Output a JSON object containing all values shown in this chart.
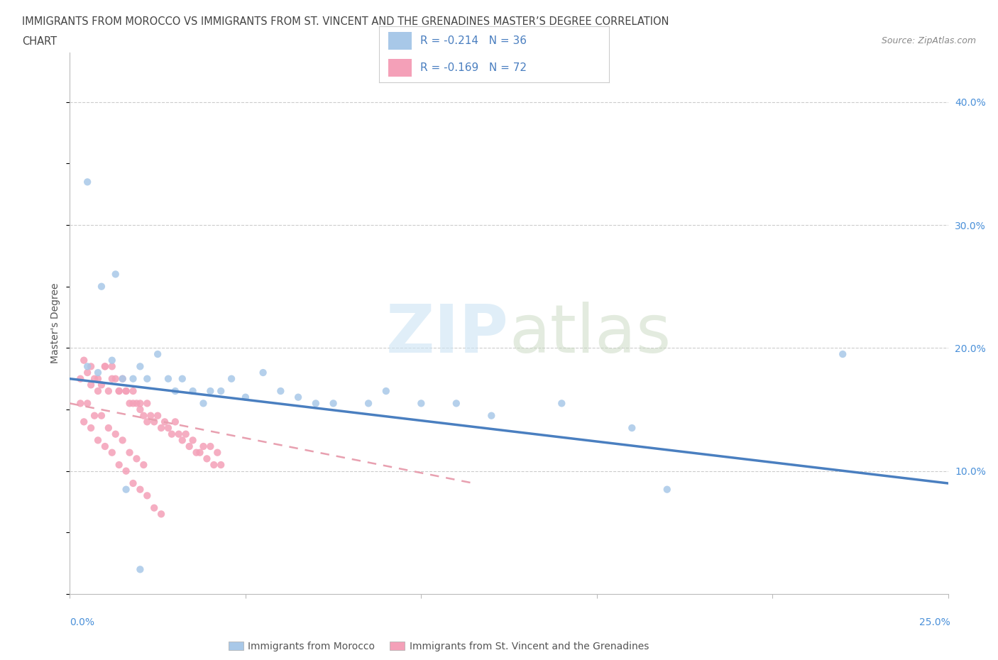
{
  "title_line1": "IMMIGRANTS FROM MOROCCO VS IMMIGRANTS FROM ST. VINCENT AND THE GRENADINES MASTER’S DEGREE CORRELATION",
  "title_line2": "CHART",
  "source_text": "Source: ZipAtlas.com",
  "ylabel": "Master's Degree",
  "ylabel_right_ticks": [
    "40.0%",
    "30.0%",
    "20.0%",
    "10.0%"
  ],
  "ylabel_right_vals": [
    0.4,
    0.3,
    0.2,
    0.1
  ],
  "xmin": 0.0,
  "xmax": 0.25,
  "ymin": 0.0,
  "ymax": 0.44,
  "color_morocco": "#a8c8e8",
  "color_stv": "#f4a0b8",
  "color_line_morocco": "#4a7fc0",
  "color_line_stv": "#e8a0b0",
  "morocco_scatter_x": [
    0.005,
    0.008,
    0.012,
    0.015,
    0.018,
    0.02,
    0.022,
    0.025,
    0.028,
    0.03,
    0.032,
    0.035,
    0.038,
    0.04,
    0.043,
    0.046,
    0.05,
    0.055,
    0.06,
    0.065,
    0.07,
    0.075,
    0.085,
    0.09,
    0.1,
    0.11,
    0.12,
    0.14,
    0.16,
    0.17,
    0.22,
    0.005,
    0.009,
    0.013,
    0.016,
    0.02
  ],
  "morocco_scatter_y": [
    0.185,
    0.18,
    0.19,
    0.175,
    0.175,
    0.185,
    0.175,
    0.195,
    0.175,
    0.165,
    0.175,
    0.165,
    0.155,
    0.165,
    0.165,
    0.175,
    0.16,
    0.18,
    0.165,
    0.16,
    0.155,
    0.155,
    0.155,
    0.165,
    0.155,
    0.155,
    0.145,
    0.155,
    0.135,
    0.085,
    0.195,
    0.335,
    0.25,
    0.26,
    0.085,
    0.02
  ],
  "stv_scatter_x": [
    0.003,
    0.005,
    0.006,
    0.007,
    0.008,
    0.009,
    0.01,
    0.011,
    0.012,
    0.013,
    0.014,
    0.015,
    0.016,
    0.017,
    0.018,
    0.019,
    0.02,
    0.021,
    0.022,
    0.023,
    0.024,
    0.025,
    0.026,
    0.027,
    0.028,
    0.029,
    0.03,
    0.031,
    0.032,
    0.033,
    0.034,
    0.035,
    0.036,
    0.037,
    0.038,
    0.039,
    0.04,
    0.041,
    0.042,
    0.043,
    0.004,
    0.006,
    0.008,
    0.01,
    0.012,
    0.014,
    0.016,
    0.018,
    0.02,
    0.022,
    0.003,
    0.005,
    0.007,
    0.009,
    0.011,
    0.013,
    0.015,
    0.017,
    0.019,
    0.021,
    0.004,
    0.006,
    0.008,
    0.01,
    0.012,
    0.014,
    0.016,
    0.018,
    0.02,
    0.022,
    0.024,
    0.026
  ],
  "stv_scatter_y": [
    0.175,
    0.18,
    0.17,
    0.175,
    0.165,
    0.17,
    0.185,
    0.165,
    0.185,
    0.175,
    0.165,
    0.175,
    0.165,
    0.155,
    0.165,
    0.155,
    0.155,
    0.145,
    0.155,
    0.145,
    0.14,
    0.145,
    0.135,
    0.14,
    0.135,
    0.13,
    0.14,
    0.13,
    0.125,
    0.13,
    0.12,
    0.125,
    0.115,
    0.115,
    0.12,
    0.11,
    0.12,
    0.105,
    0.115,
    0.105,
    0.19,
    0.185,
    0.175,
    0.185,
    0.175,
    0.165,
    0.165,
    0.155,
    0.15,
    0.14,
    0.155,
    0.155,
    0.145,
    0.145,
    0.135,
    0.13,
    0.125,
    0.115,
    0.11,
    0.105,
    0.14,
    0.135,
    0.125,
    0.12,
    0.115,
    0.105,
    0.1,
    0.09,
    0.085,
    0.08,
    0.07,
    0.065
  ],
  "morocco_line_x0": 0.0,
  "morocco_line_x1": 0.25,
  "morocco_line_y0": 0.175,
  "morocco_line_y1": 0.09,
  "stv_line_x0": 0.0,
  "stv_line_x1": 0.115,
  "stv_line_y0": 0.155,
  "stv_line_y1": 0.09
}
